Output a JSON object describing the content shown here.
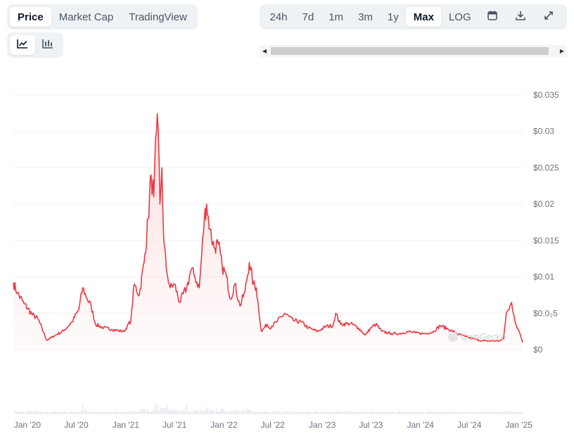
{
  "toolbar": {
    "tabs": [
      "Price",
      "Market Cap",
      "TradingView"
    ],
    "active_tab": "Price",
    "chart_types": [
      "line-chart-icon",
      "candlestick-chart-icon"
    ],
    "active_chart_type": "line-chart-icon",
    "ranges": [
      "24h",
      "7d",
      "1m",
      "3m",
      "1y",
      "Max",
      "LOG"
    ],
    "active_range": "Max",
    "tools": [
      "calendar-icon",
      "download-icon",
      "expand-icon"
    ]
  },
  "watermark": "CoinGecko",
  "colors": {
    "line": "#ea3943",
    "area_top": "#fbd3d5",
    "grid": "#eceff3",
    "volume": "#d9dde3"
  },
  "chart_data": {
    "type": "line",
    "title": "",
    "xlabel": "",
    "ylabel": "",
    "ylim": [
      0,
      0.035
    ],
    "y_ticks": [
      "$0",
      "$0.0₂5",
      "$0.01",
      "$0.015",
      "$0.02",
      "$0.025",
      "$0.03",
      "$0.035"
    ],
    "y_tick_values": [
      0,
      0.005,
      0.01,
      0.015,
      0.02,
      0.025,
      0.03,
      0.035
    ],
    "x_range": [
      "2019-11-10",
      "2025-01-15"
    ],
    "x_ticks": [
      {
        "label": "Jan '20",
        "date": "2020-01-01"
      },
      {
        "label": "Jul '20",
        "date": "2020-07-01"
      },
      {
        "label": "Jan '21",
        "date": "2021-01-01"
      },
      {
        "label": "Jul '21",
        "date": "2021-07-01"
      },
      {
        "label": "Jan '22",
        "date": "2022-01-01"
      },
      {
        "label": "Jul '22",
        "date": "2022-07-01"
      },
      {
        "label": "Jan '23",
        "date": "2023-01-01"
      },
      {
        "label": "Jul '23",
        "date": "2023-07-01"
      },
      {
        "label": "Jan '24",
        "date": "2024-01-01"
      },
      {
        "label": "Jul '24",
        "date": "2024-07-01"
      },
      {
        "label": "Jan '25",
        "date": "2025-01-01"
      }
    ],
    "grid": true,
    "series": [
      {
        "values": [
          [
            "2019-11-10",
            0.0092
          ],
          [
            "2019-11-25",
            0.0078
          ],
          [
            "2019-12-20",
            0.0063
          ],
          [
            "2020-01-20",
            0.0048
          ],
          [
            "2020-02-10",
            0.0042
          ],
          [
            "2020-03-13",
            0.0013
          ],
          [
            "2020-04-15",
            0.002
          ],
          [
            "2020-05-15",
            0.0026
          ],
          [
            "2020-06-15",
            0.0038
          ],
          [
            "2020-07-10",
            0.0055
          ],
          [
            "2020-07-25",
            0.0085
          ],
          [
            "2020-08-10",
            0.007
          ],
          [
            "2020-08-25",
            0.006
          ],
          [
            "2020-09-10",
            0.0035
          ],
          [
            "2020-10-10",
            0.003
          ],
          [
            "2020-11-10",
            0.0028
          ],
          [
            "2020-12-05",
            0.0026
          ],
          [
            "2020-12-25",
            0.0025
          ],
          [
            "2021-01-20",
            0.004
          ],
          [
            "2021-02-01",
            0.009
          ],
          [
            "2021-02-20",
            0.0075
          ],
          [
            "2021-03-10",
            0.012
          ],
          [
            "2021-03-25",
            0.018
          ],
          [
            "2021-04-05",
            0.024
          ],
          [
            "2021-04-15",
            0.021
          ],
          [
            "2021-04-25",
            0.03
          ],
          [
            "2021-05-01",
            0.0305
          ],
          [
            "2021-05-08",
            0.02
          ],
          [
            "2021-05-15",
            0.025
          ],
          [
            "2021-05-22",
            0.015
          ],
          [
            "2021-06-01",
            0.011
          ],
          [
            "2021-06-15",
            0.0085
          ],
          [
            "2021-07-01",
            0.009
          ],
          [
            "2021-07-20",
            0.0065
          ],
          [
            "2021-08-15",
            0.0085
          ],
          [
            "2021-09-01",
            0.011
          ],
          [
            "2021-09-15",
            0.01
          ],
          [
            "2021-10-01",
            0.0085
          ],
          [
            "2021-10-20",
            0.018
          ],
          [
            "2021-10-28",
            0.02
          ],
          [
            "2021-11-10",
            0.0165
          ],
          [
            "2021-11-25",
            0.014
          ],
          [
            "2021-12-10",
            0.0145
          ],
          [
            "2021-12-25",
            0.0115
          ],
          [
            "2022-01-10",
            0.01
          ],
          [
            "2022-01-25",
            0.007
          ],
          [
            "2022-02-10",
            0.009
          ],
          [
            "2022-03-01",
            0.006
          ],
          [
            "2022-03-20",
            0.008
          ],
          [
            "2022-04-05",
            0.012
          ],
          [
            "2022-04-20",
            0.009
          ],
          [
            "2022-05-01",
            0.0085
          ],
          [
            "2022-05-10",
            0.0055
          ],
          [
            "2022-05-20",
            0.0025
          ],
          [
            "2022-06-10",
            0.0035
          ],
          [
            "2022-06-18",
            0.003
          ],
          [
            "2022-07-15",
            0.0038
          ],
          [
            "2022-08-15",
            0.005
          ],
          [
            "2022-09-15",
            0.004
          ],
          [
            "2022-10-15",
            0.0038
          ],
          [
            "2022-11-10",
            0.003
          ],
          [
            "2022-12-15",
            0.0025
          ],
          [
            "2023-01-15",
            0.0032
          ],
          [
            "2023-02-10",
            0.0033
          ],
          [
            "2023-02-20",
            0.005
          ],
          [
            "2023-03-10",
            0.0035
          ],
          [
            "2023-04-15",
            0.0036
          ],
          [
            "2023-05-15",
            0.003
          ],
          [
            "2023-06-10",
            0.002
          ],
          [
            "2023-07-01",
            0.003
          ],
          [
            "2023-07-20",
            0.0035
          ],
          [
            "2023-08-10",
            0.0025
          ],
          [
            "2023-09-15",
            0.0022
          ],
          [
            "2023-10-15",
            0.0022
          ],
          [
            "2023-11-15",
            0.0025
          ],
          [
            "2023-12-15",
            0.0023
          ],
          [
            "2024-01-15",
            0.0022
          ],
          [
            "2024-02-15",
            0.0024
          ],
          [
            "2024-03-15",
            0.0033
          ],
          [
            "2024-04-15",
            0.0028
          ],
          [
            "2024-05-15",
            0.0022
          ],
          [
            "2024-06-15",
            0.0018
          ],
          [
            "2024-07-15",
            0.0015
          ],
          [
            "2024-08-15",
            0.0012
          ],
          [
            "2024-09-15",
            0.0012
          ],
          [
            "2024-10-20",
            0.0012
          ],
          [
            "2024-11-05",
            0.0015
          ],
          [
            "2024-11-15",
            0.005
          ],
          [
            "2024-11-25",
            0.0055
          ],
          [
            "2024-12-05",
            0.0065
          ],
          [
            "2024-12-15",
            0.0045
          ],
          [
            "2024-12-25",
            0.003
          ],
          [
            "2025-01-05",
            0.0022
          ],
          [
            "2025-01-15",
            0.001
          ]
        ]
      }
    ]
  }
}
